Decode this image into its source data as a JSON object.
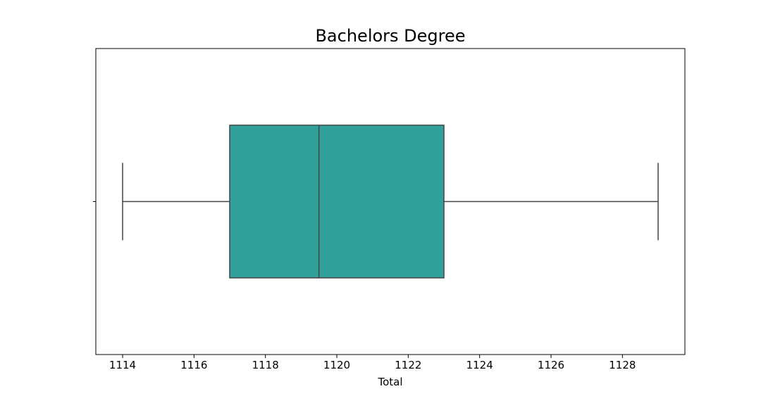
{
  "chart_data": {
    "type": "box",
    "title": "Bachelors Degree",
    "xlabel": "Total",
    "ylabel": "",
    "orientation": "horizontal",
    "xlim": [
      1113.25,
      1129.75
    ],
    "xticks": [
      1114,
      1116,
      1118,
      1120,
      1122,
      1124,
      1126,
      1128
    ],
    "xtick_labels": [
      "1114",
      "1116",
      "1118",
      "1120",
      "1122",
      "1124",
      "1126",
      "1128"
    ],
    "grid": false,
    "box": {
      "whisker_low": 1114,
      "q1": 1117,
      "median": 1119.5,
      "q3": 1123,
      "whisker_high": 1129
    },
    "colors": {
      "box_fill": "#31a19b",
      "line": "#444444",
      "frame": "#000000"
    }
  }
}
